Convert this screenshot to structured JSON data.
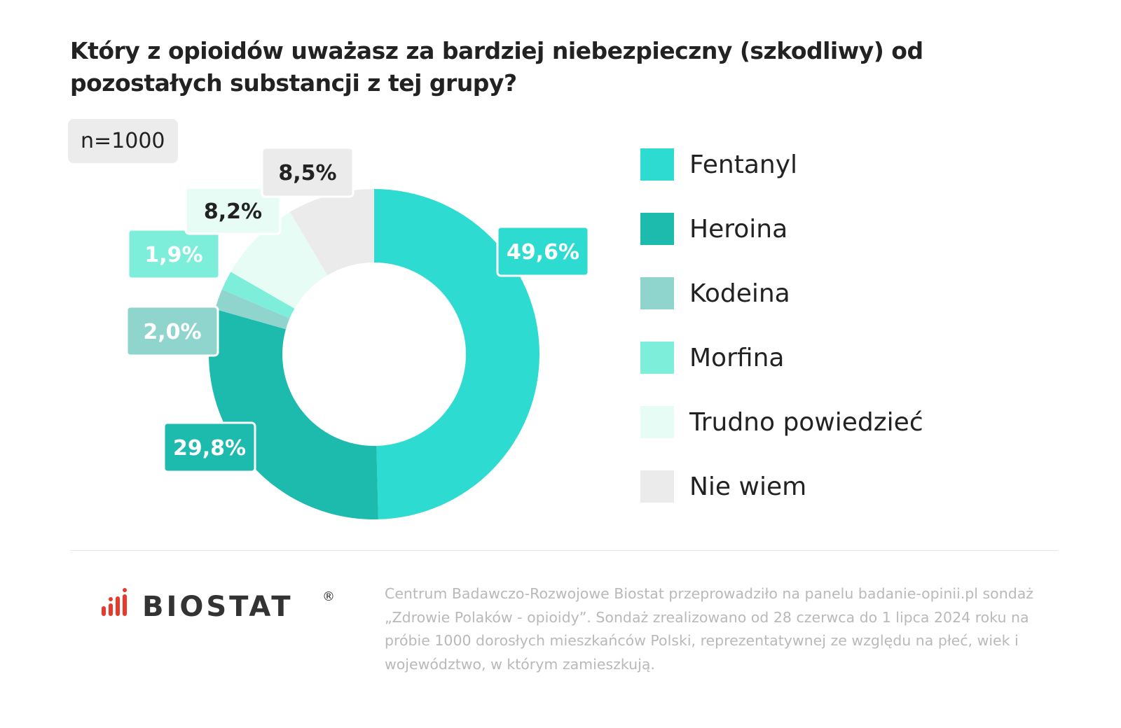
{
  "chart_data": {
    "type": "donut",
    "title": "Który z opioidów uważasz za bardziej niebezpieczny (szkodliwy) od pozostałych substancji z tej grupy?",
    "note": "n=1000",
    "legend_position": "right",
    "slices": [
      {
        "name": "Fentanyl",
        "value": 49.6,
        "label": "49,6%",
        "color": "#2EDBD0",
        "label_color": "#ffffff"
      },
      {
        "name": "Heroina",
        "value": 29.8,
        "label": "29,8%",
        "color": "#1DBAAE",
        "label_color": "#ffffff"
      },
      {
        "name": "Kodeina",
        "value": 2.0,
        "label": "2,0%",
        "color": "#8FD5CE",
        "label_color": "#ffffff"
      },
      {
        "name": "Morfina",
        "value": 1.9,
        "label": "1,9%",
        "color": "#7DEEDA",
        "label_color": "#ffffff"
      },
      {
        "name": "Trudno powiedzieć",
        "value": 8.2,
        "label": "8,2%",
        "color": "#E8FCF6",
        "label_color": "#222222"
      },
      {
        "name": "Nie wiem",
        "value": 8.5,
        "label": "8,5%",
        "color": "#EBEBEB",
        "label_color": "#222222"
      }
    ]
  },
  "footer": {
    "logo_text": "BIOSTAT",
    "logo_mark": "®",
    "logo_color": "#E8392B",
    "note": "Centrum Badawczo-Rozwojowe Biostat przeprowadziło na panelu badanie-opinii.pl sondaż „Zdrowie Polaków - opioidy”. Sondaż zrealizowano od 28 czerwca do 1 lipca 2024 roku na próbie 1000 dorosłych mieszkańców Polski, reprezentatywnej ze względu na płeć, wiek i województwo, w którym zamieszkują."
  }
}
